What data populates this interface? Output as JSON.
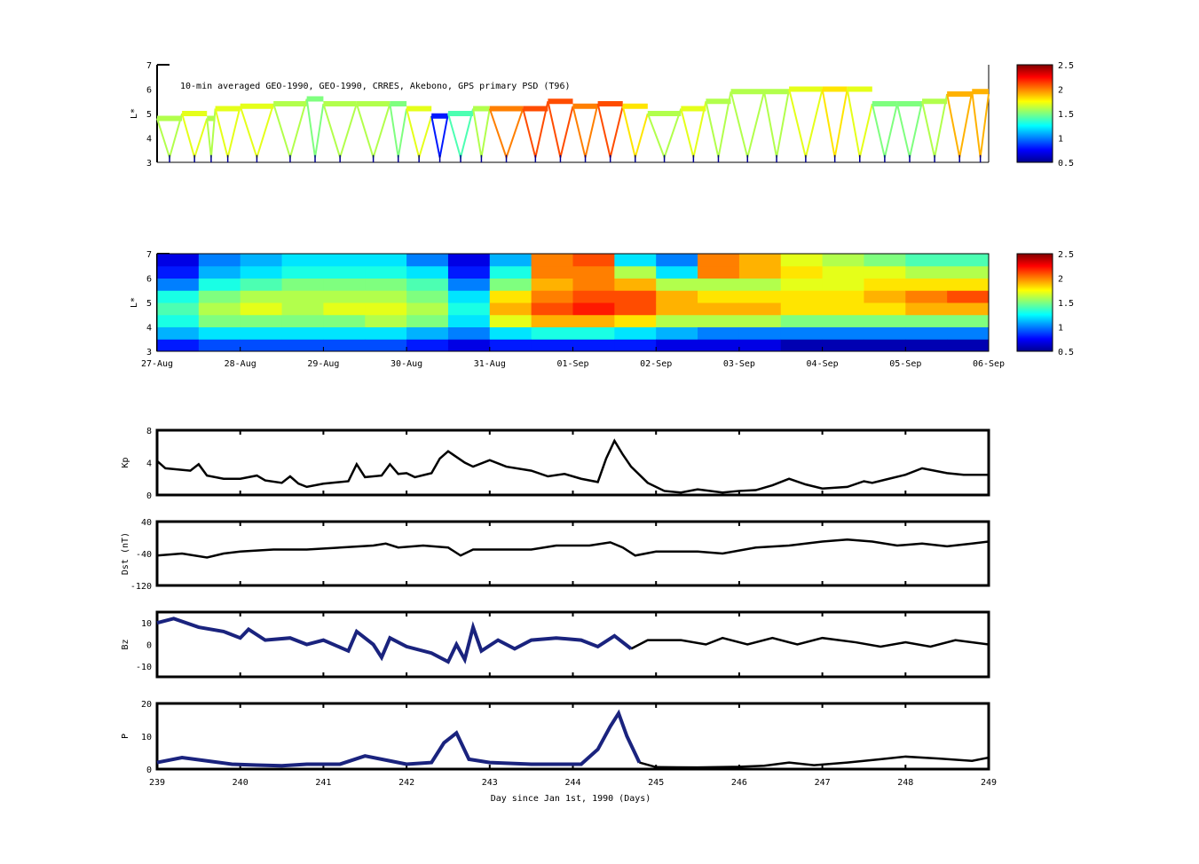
{
  "chart_data": [
    {
      "type": "scatter",
      "title": "10-min averaged GEO-1990, GEO-1990, CRRES, Akebono, GPS  primary PSD (T96)",
      "ylabel": "L*",
      "ylim": [
        3,
        7
      ],
      "yticks": [
        "3",
        "4",
        "5",
        "6",
        "7"
      ],
      "xlim": [
        239,
        249
      ],
      "colorbar": {
        "range": [
          0.5,
          2.5
        ],
        "ticks": [
          "0.5",
          "1",
          "1.5",
          "2",
          "2.5"
        ],
        "colormap": "jet"
      },
      "geo_points": [
        [
          239.0,
          4.8,
          1.6
        ],
        [
          239.3,
          5.0,
          1.7
        ],
        [
          239.6,
          4.8,
          1.6
        ],
        [
          239.7,
          5.2,
          1.7
        ],
        [
          240.0,
          5.3,
          1.7
        ],
        [
          240.4,
          5.4,
          1.6
        ],
        [
          240.8,
          5.6,
          1.5
        ],
        [
          241.0,
          5.4,
          1.6
        ],
        [
          241.4,
          5.4,
          1.6
        ],
        [
          241.8,
          5.4,
          1.5
        ],
        [
          242.0,
          5.2,
          1.7
        ],
        [
          242.3,
          4.9,
          0.8
        ],
        [
          242.5,
          5.0,
          1.4
        ],
        [
          242.8,
          5.2,
          1.6
        ],
        [
          243.0,
          5.2,
          2.0
        ],
        [
          243.4,
          5.2,
          2.1
        ],
        [
          243.7,
          5.5,
          2.1
        ],
        [
          244.0,
          5.3,
          2.0
        ],
        [
          244.3,
          5.4,
          2.1
        ],
        [
          244.6,
          5.3,
          1.8
        ],
        [
          244.9,
          5.0,
          1.6
        ],
        [
          245.3,
          5.2,
          1.7
        ],
        [
          245.6,
          5.5,
          1.6
        ],
        [
          245.9,
          5.9,
          1.6
        ],
        [
          246.3,
          5.9,
          1.6
        ],
        [
          246.6,
          6.0,
          1.7
        ],
        [
          247.0,
          6.0,
          1.8
        ],
        [
          247.3,
          6.0,
          1.7
        ],
        [
          247.6,
          5.4,
          1.5
        ],
        [
          247.9,
          5.4,
          1.5
        ],
        [
          248.2,
          5.5,
          1.6
        ],
        [
          248.5,
          5.8,
          1.9
        ],
        [
          248.8,
          5.9,
          1.9
        ],
        [
          249.0,
          5.8,
          2.0
        ]
      ]
    },
    {
      "type": "heatmap",
      "ylabel": "L*",
      "ylim": [
        3,
        7
      ],
      "yticks": [
        "3",
        "4",
        "5",
        "6",
        "7"
      ],
      "x_tick_labels": [
        "27-Aug",
        "28-Aug",
        "29-Aug",
        "30-Aug",
        "31-Aug",
        "01-Sep",
        "02-Sep",
        "03-Sep",
        "04-Sep",
        "05-Sep",
        "06-Sep"
      ],
      "colorbar": {
        "range": [
          0.5,
          2.5
        ],
        "ticks": [
          "0.5",
          "1",
          "1.5",
          "2",
          "2.5"
        ],
        "colormap": "jet"
      },
      "note_bins": "columns = half-day bins from 27-Aug, rows = L* 3.0-7.0 in 0.5 steps",
      "values": [
        [
          0.8,
          1.1,
          1.3,
          1.4,
          1.3,
          1.0,
          0.8,
          0.7
        ],
        [
          0.9,
          1.2,
          1.5,
          1.6,
          1.5,
          1.3,
          1.1,
          1.0
        ],
        [
          0.9,
          1.2,
          1.5,
          1.7,
          1.6,
          1.4,
          1.2,
          1.1
        ],
        [
          0.9,
          1.2,
          1.5,
          1.6,
          1.6,
          1.5,
          1.3,
          1.2
        ],
        [
          0.9,
          1.2,
          1.5,
          1.7,
          1.6,
          1.5,
          1.3,
          1.2
        ],
        [
          0.9,
          1.2,
          1.6,
          1.7,
          1.6,
          1.5,
          1.3,
          1.2
        ],
        [
          0.8,
          1.1,
          1.5,
          1.6,
          1.5,
          1.4,
          1.2,
          1.0
        ],
        [
          0.7,
          1.0,
          1.2,
          1.3,
          1.2,
          1.0,
          0.8,
          0.7
        ],
        [
          0.8,
          1.2,
          1.7,
          1.9,
          1.8,
          1.5,
          1.3,
          1.1
        ],
        [
          0.8,
          1.3,
          1.9,
          2.1,
          2.0,
          1.9,
          2.0,
          2.0
        ],
        [
          0.8,
          1.3,
          1.9,
          2.2,
          2.1,
          2.0,
          2.0,
          2.1
        ],
        [
          0.8,
          1.2,
          1.8,
          2.1,
          2.1,
          1.9,
          1.6,
          1.2
        ],
        [
          0.7,
          1.1,
          1.6,
          1.9,
          1.9,
          1.6,
          1.2,
          1.0
        ],
        [
          0.7,
          1.0,
          1.6,
          1.9,
          1.8,
          1.6,
          2.0,
          2.0
        ],
        [
          0.7,
          1.0,
          1.6,
          1.9,
          1.8,
          1.6,
          1.9,
          1.9
        ],
        [
          0.6,
          1.0,
          1.5,
          1.8,
          1.8,
          1.7,
          1.8,
          1.7
        ],
        [
          0.6,
          1.0,
          1.5,
          1.8,
          1.8,
          1.7,
          1.7,
          1.6
        ],
        [
          0.6,
          1.0,
          1.5,
          1.8,
          1.9,
          1.8,
          1.7,
          1.5
        ],
        [
          0.6,
          1.0,
          1.5,
          1.9,
          2.0,
          1.8,
          1.6,
          1.4
        ],
        [
          0.6,
          1.0,
          1.5,
          1.9,
          2.1,
          1.8,
          1.6,
          1.4
        ]
      ]
    },
    {
      "type": "line",
      "ylabel": "Kp",
      "ylim": [
        0,
        8
      ],
      "yticks": [
        "0",
        "4",
        "8"
      ],
      "xlim": [
        239,
        249
      ],
      "x": [
        239.0,
        239.1,
        239.4,
        239.5,
        239.6,
        239.8,
        240.0,
        240.2,
        240.3,
        240.5,
        240.6,
        240.7,
        240.8,
        241.0,
        241.3,
        241.4,
        241.5,
        241.7,
        241.8,
        241.9,
        242.0,
        242.1,
        242.3,
        242.4,
        242.5,
        242.7,
        242.8,
        243.0,
        243.2,
        243.5,
        243.7,
        243.9,
        244.1,
        244.3,
        244.4,
        244.5,
        244.6,
        244.7,
        244.9,
        245.1,
        245.3,
        245.5,
        245.8,
        246.0,
        246.2,
        246.4,
        246.6,
        246.8,
        247.0,
        247.3,
        247.5,
        247.6,
        247.8,
        248.0,
        248.2,
        248.5,
        248.7,
        249.0
      ],
      "y": [
        4.2,
        3.3,
        3.0,
        3.8,
        2.4,
        2.0,
        2.0,
        2.4,
        1.8,
        1.5,
        2.3,
        1.4,
        1.0,
        1.4,
        1.7,
        3.8,
        2.2,
        2.4,
        3.8,
        2.6,
        2.7,
        2.2,
        2.7,
        4.5,
        5.4,
        4.0,
        3.5,
        4.3,
        3.5,
        3.0,
        2.3,
        2.6,
        2.0,
        1.6,
        4.5,
        6.7,
        5.0,
        3.5,
        1.5,
        0.5,
        0.3,
        0.7,
        0.3,
        0.5,
        0.6,
        1.2,
        2.0,
        1.3,
        0.8,
        1.0,
        1.7,
        1.5,
        2.0,
        2.5,
        3.3,
        2.7,
        2.5,
        2.5
      ]
    },
    {
      "type": "line",
      "ylabel": "Dst (nT)",
      "ylim": [
        -120,
        40
      ],
      "yticks": [
        "-120",
        "-40",
        "40"
      ],
      "xlim": [
        239,
        249
      ],
      "x": [
        239.0,
        239.3,
        239.6,
        239.8,
        240.0,
        240.4,
        240.8,
        241.2,
        241.6,
        241.75,
        241.9,
        242.2,
        242.5,
        242.65,
        242.8,
        243.0,
        243.5,
        243.8,
        244.2,
        244.45,
        244.6,
        244.75,
        245.0,
        245.5,
        245.8,
        246.2,
        246.6,
        247.0,
        247.3,
        247.6,
        247.9,
        248.2,
        248.5,
        248.8,
        249.0
      ],
      "y": [
        -45,
        -40,
        -50,
        -40,
        -35,
        -30,
        -30,
        -25,
        -20,
        -15,
        -25,
        -20,
        -25,
        -45,
        -30,
        -30,
        -30,
        -20,
        -20,
        -12,
        -25,
        -45,
        -35,
        -35,
        -40,
        -25,
        -20,
        -10,
        -5,
        -10,
        -20,
        -15,
        -22,
        -15,
        -10
      ]
    },
    {
      "type": "line",
      "ylabel": "Bz",
      "ylim": [
        -15,
        15
      ],
      "yticks": [
        "-10",
        "0",
        "10"
      ],
      "xlim": [
        239,
        249
      ],
      "measured_until": 244.7,
      "colors": {
        "measured": "#1a237e",
        "other": "#000000"
      },
      "x": [
        239.0,
        239.2,
        239.5,
        239.8,
        240.0,
        240.1,
        240.3,
        240.6,
        240.8,
        241.0,
        241.3,
        241.4,
        241.6,
        241.7,
        241.8,
        242.0,
        242.3,
        242.5,
        242.6,
        242.7,
        242.8,
        242.9,
        243.1,
        243.3,
        243.5,
        243.8,
        244.1,
        244.3,
        244.5,
        244.7,
        244.9,
        245.3,
        245.6,
        245.8,
        246.1,
        246.4,
        246.7,
        247.0,
        247.4,
        247.7,
        248.0,
        248.3,
        248.6,
        249.0
      ],
      "y": [
        10,
        12,
        8,
        6,
        3,
        7,
        2,
        3,
        0,
        2,
        -3,
        6,
        0,
        -6,
        3,
        -1,
        -4,
        -8,
        0,
        -7,
        8,
        -3,
        2,
        -2,
        2,
        3,
        2,
        -1,
        4,
        -2,
        2,
        2,
        0,
        3,
        0,
        3,
        0,
        3,
        1,
        -1,
        1,
        -1,
        2,
        0
      ]
    },
    {
      "type": "line",
      "ylabel": "P",
      "ylim": [
        0,
        20
      ],
      "yticks": [
        "0",
        "10",
        "20"
      ],
      "xlim": [
        239,
        249
      ],
      "measured_until": 244.8,
      "colors": {
        "measured": "#1a237e",
        "other": "#000000"
      },
      "xlabel": "Day since Jan 1st, 1990 (Days)",
      "x_tick_labels": [
        "239",
        "240",
        "241",
        "242",
        "243",
        "244",
        "245",
        "246",
        "247",
        "248",
        "249"
      ],
      "x": [
        239.0,
        239.3,
        239.6,
        239.9,
        240.2,
        240.5,
        240.8,
        241.2,
        241.5,
        241.8,
        242.0,
        242.3,
        242.45,
        242.6,
        242.75,
        243.0,
        243.5,
        244.1,
        244.3,
        244.45,
        244.55,
        244.65,
        244.8,
        245.0,
        245.5,
        246.0,
        246.3,
        246.6,
        246.9,
        247.3,
        247.7,
        248.0,
        248.4,
        248.8,
        249.0
      ],
      "y": [
        2,
        3.5,
        2.5,
        1.5,
        1.2,
        1,
        1.5,
        1.5,
        4,
        2.5,
        1.5,
        2,
        8,
        11,
        3,
        2,
        1.5,
        1.5,
        6,
        13,
        17,
        10,
        2,
        0.6,
        0.5,
        0.7,
        1,
        2,
        1.2,
        2,
        3,
        3.8,
        3.2,
        2.5,
        3.5
      ]
    }
  ]
}
